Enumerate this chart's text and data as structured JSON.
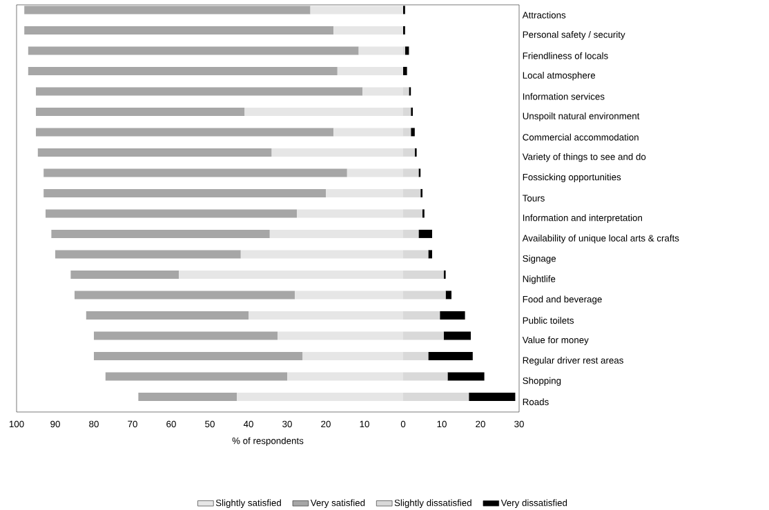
{
  "chart_data": {
    "type": "bar",
    "orientation": "horizontal",
    "stacked": true,
    "xlabel": "% of respondents",
    "legend": "bottom",
    "categories": [
      "Attractions",
      "Personal safety / security",
      "Friendliness of locals",
      "Local atmosphere",
      "Information services",
      "Unspoilt natural environment",
      "Commercial accommodation",
      "Variety of things to see and do",
      "Fossicking opportunities",
      "Tours",
      "Information and interpretation",
      "Availability of unique local arts & crafts",
      "Signage",
      "Nightlife",
      "Food and beverage",
      "Public toilets",
      "Value for money",
      "Regular driver rest areas",
      "Shopping",
      "Roads"
    ],
    "series": [
      {
        "name": "Slightly satisfied",
        "color": "#e6e6e6",
        "values": [
          -24,
          -18,
          -11.5,
          -17,
          -10.5,
          -41,
          -18,
          -34,
          -14.5,
          -20,
          -27.5,
          -34.5,
          -42,
          -58,
          -28,
          -40,
          -32.5,
          -26,
          -30,
          -43
        ]
      },
      {
        "name": "Very satisfied",
        "color": "#a6a6a6",
        "values": [
          -74,
          -80,
          -85.5,
          -80,
          -84.5,
          -54,
          -77,
          -60.5,
          -78.5,
          -73,
          -65,
          -56.5,
          -48,
          -28,
          -57,
          -42,
          -47.5,
          -54,
          -47,
          -25.5
        ]
      },
      {
        "name": "Slightly dissatisfied",
        "color": "#d9d9d9",
        "values": [
          0,
          0,
          0.5,
          0,
          1.5,
          2,
          2,
          3,
          4,
          4.5,
          5,
          4,
          6.5,
          10.5,
          11,
          9.5,
          10.5,
          6.5,
          11.5,
          17
        ]
      },
      {
        "name": "Very dissatisfied",
        "color": "#000000",
        "values": [
          0.5,
          0.5,
          1,
          1,
          0.5,
          0.5,
          1,
          0.5,
          0.5,
          0.5,
          0.5,
          3.5,
          1,
          0.5,
          1.5,
          6.5,
          7,
          11.5,
          9.5,
          12
        ]
      }
    ],
    "xlim": [
      -100,
      30
    ],
    "xticks": [
      {
        "value": -100,
        "label": "100"
      },
      {
        "value": -90,
        "label": "90"
      },
      {
        "value": -80,
        "label": "80"
      },
      {
        "value": -70,
        "label": "70"
      },
      {
        "value": -60,
        "label": "60"
      },
      {
        "value": -50,
        "label": "50"
      },
      {
        "value": -40,
        "label": "40"
      },
      {
        "value": -30,
        "label": "30"
      },
      {
        "value": -20,
        "label": "20"
      },
      {
        "value": -10,
        "label": "10"
      },
      {
        "value": 0,
        "label": "0"
      },
      {
        "value": 10,
        "label": "10"
      },
      {
        "value": 20,
        "label": "20"
      },
      {
        "value": 30,
        "label": "30"
      }
    ]
  }
}
